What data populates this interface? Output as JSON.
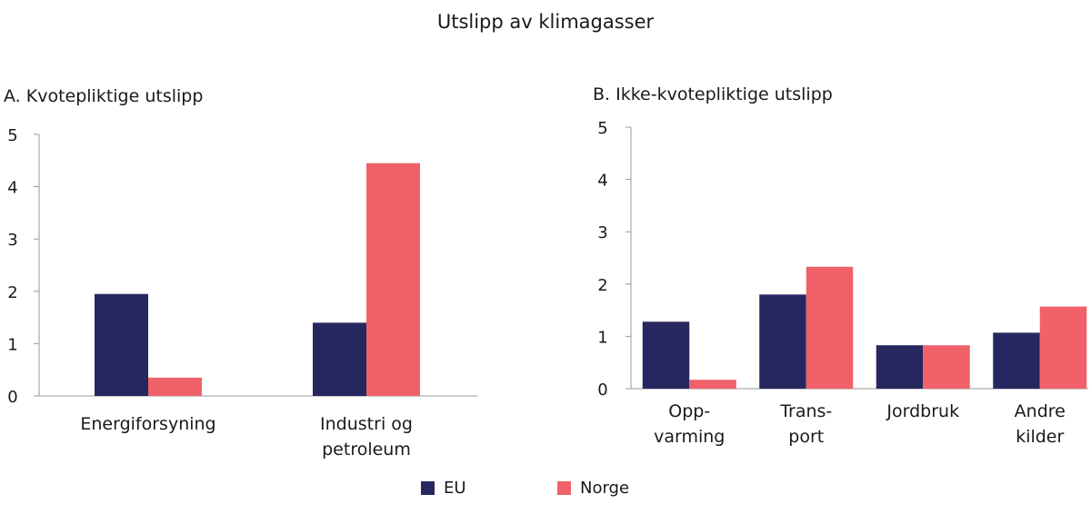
{
  "title": "Utslipp av klimagasser",
  "colors": {
    "EU": "#272760",
    "Norge": "#f0616a",
    "axis": "#9a9a9a"
  },
  "legend": [
    {
      "name": "EU",
      "color": "#272760"
    },
    {
      "name": "Norge",
      "color": "#f0616a"
    }
  ],
  "chart_data": [
    {
      "type": "bar",
      "title": "A.  Kvotepliktige utslipp",
      "categories": [
        [
          "Energiforsyning"
        ],
        [
          "Industri og",
          "petroleum"
        ]
      ],
      "series": [
        {
          "name": "EU",
          "values": [
            1.95,
            1.4
          ]
        },
        {
          "name": "Norge",
          "values": [
            0.35,
            4.45
          ]
        }
      ],
      "ylim": [
        0,
        5
      ],
      "yticks": [
        0,
        1,
        2,
        3,
        4,
        5
      ],
      "grid": false
    },
    {
      "type": "bar",
      "title": "B.  Ikke-kvotepliktige utslipp",
      "categories": [
        [
          "Opp-",
          "varming"
        ],
        [
          "Trans-",
          "port"
        ],
        [
          "Jordbruk"
        ],
        [
          "Andre",
          "kilder"
        ]
      ],
      "series": [
        {
          "name": "EU",
          "values": [
            1.28,
            1.8,
            0.83,
            1.07
          ]
        },
        {
          "name": "Norge",
          "values": [
            0.17,
            2.33,
            0.83,
            1.57
          ]
        }
      ],
      "ylim": [
        0,
        5
      ],
      "yticks": [
        0,
        1,
        2,
        3,
        4,
        5
      ],
      "grid": false
    }
  ]
}
